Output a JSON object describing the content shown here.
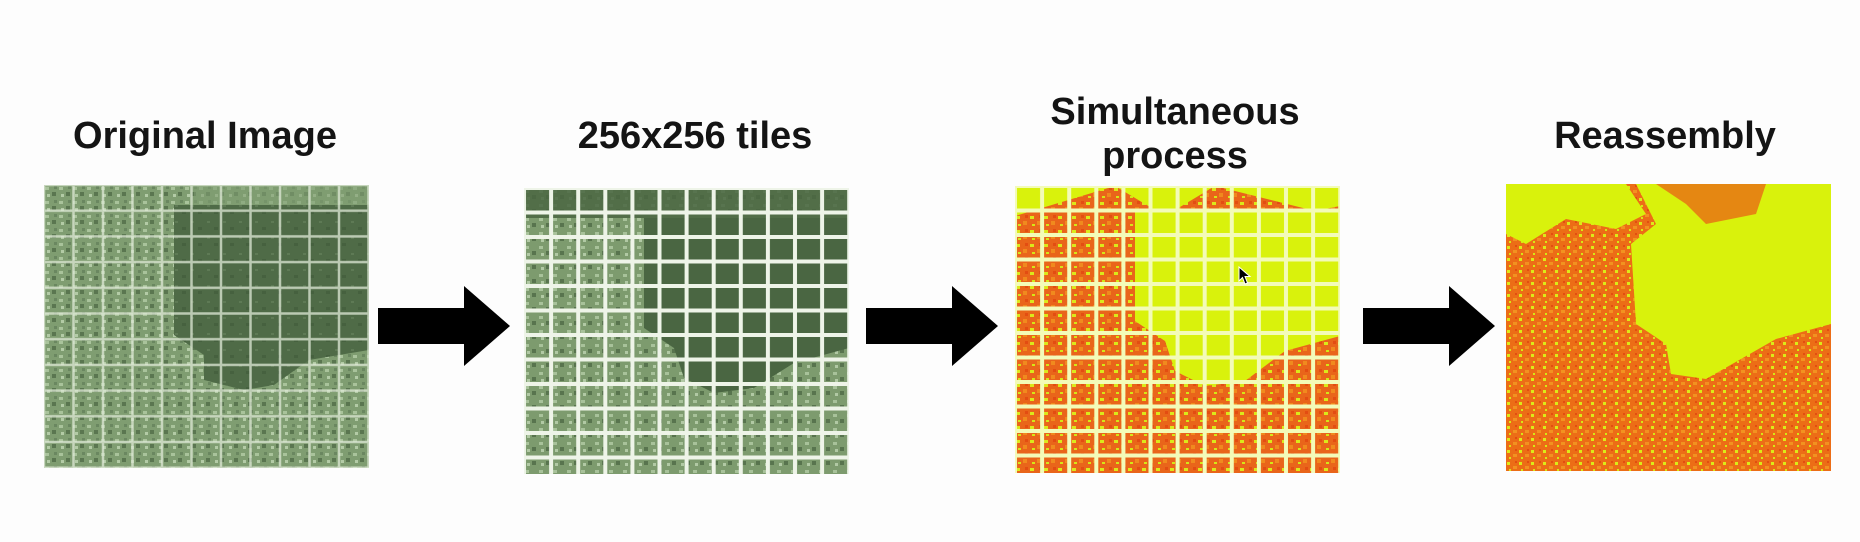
{
  "steps": [
    {
      "label": "Original Image"
    },
    {
      "label": "256x256 tiles"
    },
    {
      "label": "Simultaneous process"
    },
    {
      "label": "Reassembly"
    }
  ],
  "colors": {
    "satellite_dark": "#4e6a46",
    "satellite_light": "#9fb98f",
    "grid_line": "#e6eedd",
    "highlight_yellow": "#d9f20c",
    "classified_orange": "#ea6a12",
    "arrow": "#000000",
    "background": "#fdfdfd"
  },
  "icons": [
    "arrow-right-icon",
    "arrow-right-icon",
    "arrow-right-icon",
    "mouse-pointer-icon"
  ]
}
